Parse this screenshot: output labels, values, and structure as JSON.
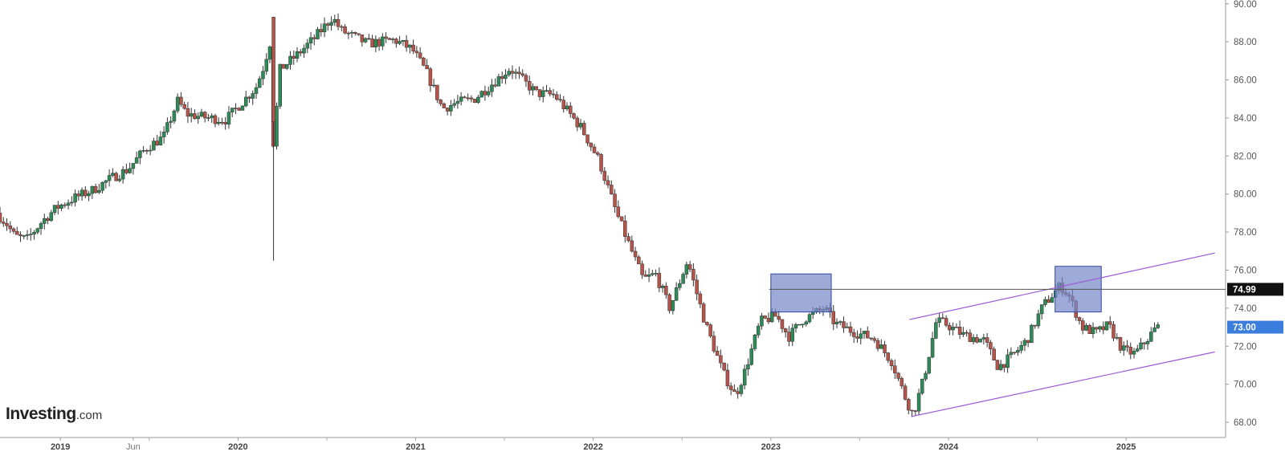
{
  "brand": {
    "name": "Investing",
    "suffix": ".com"
  },
  "colors": {
    "up": "#2e8b57",
    "down": "#b5544b",
    "box_fill": "#7889c8",
    "box_stroke": "#3346a8",
    "channel": "#9b59d6",
    "hline": "#555555",
    "last_bg": "#3b7ddd",
    "level_bg": "#111111"
  },
  "chart_data": {
    "type": "candlestick",
    "frequency": "weekly",
    "ylim": [
      67.2,
      90.2
    ],
    "y_ticks": [
      "68.00",
      "70.00",
      "72.00",
      "74.00",
      "76.00",
      "78.00",
      "80.00",
      "82.00",
      "84.00",
      "86.00",
      "88.00",
      "90.00"
    ],
    "x_ticks": [
      {
        "label": "2019",
        "t": 2019.0,
        "major": true
      },
      {
        "label": "Jun",
        "t": 2019.41,
        "major": false
      },
      {
        "label": "2020",
        "t": 2020.0,
        "major": true
      },
      {
        "label": "2021",
        "t": 2021.0,
        "major": true
      },
      {
        "label": "2022",
        "t": 2022.0,
        "major": true
      },
      {
        "label": "2023",
        "t": 2023.0,
        "major": true
      },
      {
        "label": "2024",
        "t": 2024.0,
        "major": true
      },
      {
        "label": "2025",
        "t": 2025.0,
        "major": true
      }
    ],
    "minor_ticks": [
      2019.5,
      2020.5,
      2021.5,
      2022.5,
      2023.5,
      2024.5
    ],
    "xlim": [
      2018.66,
      2025.56
    ],
    "price_path": [
      [
        2018.66,
        79.0
      ],
      [
        2018.72,
        78.4
      ],
      [
        2018.76,
        77.8
      ],
      [
        2018.83,
        77.6
      ],
      [
        2018.92,
        78.6
      ],
      [
        2019.0,
        79.3
      ],
      [
        2019.1,
        79.8
      ],
      [
        2019.2,
        80.2
      ],
      [
        2019.3,
        80.8
      ],
      [
        2019.4,
        81.3
      ],
      [
        2019.5,
        82.4
      ],
      [
        2019.6,
        83.0
      ],
      [
        2019.68,
        84.9
      ],
      [
        2019.73,
        84.2
      ],
      [
        2019.85,
        84.0
      ],
      [
        2019.95,
        83.9
      ],
      [
        2020.05,
        84.9
      ],
      [
        2020.12,
        85.6
      ],
      [
        2020.16,
        86.6
      ],
      [
        2020.2,
        88.0
      ],
      [
        2020.22,
        82.0
      ],
      [
        2020.25,
        86.5
      ],
      [
        2020.35,
        87.3
      ],
      [
        2020.45,
        88.2
      ],
      [
        2020.55,
        89.3
      ],
      [
        2020.6,
        88.6
      ],
      [
        2020.75,
        87.9
      ],
      [
        2020.9,
        88.1
      ],
      [
        2021.0,
        87.6
      ],
      [
        2021.08,
        86.4
      ],
      [
        2021.17,
        84.5
      ],
      [
        2021.25,
        84.8
      ],
      [
        2021.35,
        85.0
      ],
      [
        2021.45,
        85.8
      ],
      [
        2021.55,
        86.6
      ],
      [
        2021.7,
        85.3
      ],
      [
        2021.8,
        85.2
      ],
      [
        2021.95,
        83.5
      ],
      [
        2022.05,
        81.8
      ],
      [
        2022.15,
        79.0
      ],
      [
        2022.3,
        75.5
      ],
      [
        2022.37,
        75.8
      ],
      [
        2022.45,
        74.0
      ],
      [
        2022.55,
        76.5
      ],
      [
        2022.65,
        73.2
      ],
      [
        2022.75,
        70.6
      ],
      [
        2022.82,
        69.4
      ],
      [
        2022.87,
        70.6
      ],
      [
        2022.96,
        73.3
      ],
      [
        2023.05,
        73.6
      ],
      [
        2023.12,
        72.5
      ],
      [
        2023.2,
        73.4
      ],
      [
        2023.32,
        74.0
      ],
      [
        2023.38,
        73.2
      ],
      [
        2023.5,
        72.7
      ],
      [
        2023.6,
        72.4
      ],
      [
        2023.7,
        71.2
      ],
      [
        2023.78,
        69.2
      ],
      [
        2023.82,
        68.4
      ],
      [
        2023.88,
        70.3
      ],
      [
        2023.95,
        73.3
      ],
      [
        2024.0,
        73.2
      ],
      [
        2024.1,
        72.6
      ],
      [
        2024.22,
        72.3
      ],
      [
        2024.3,
        70.9
      ],
      [
        2024.38,
        71.5
      ],
      [
        2024.46,
        72.3
      ],
      [
        2024.55,
        74.1
      ],
      [
        2024.65,
        75.2
      ],
      [
        2024.7,
        74.6
      ],
      [
        2024.77,
        73.0
      ],
      [
        2024.85,
        72.7
      ],
      [
        2024.92,
        73.1
      ],
      [
        2025.0,
        71.8
      ],
      [
        2025.07,
        71.6
      ],
      [
        2025.14,
        72.4
      ],
      [
        2025.19,
        73.0
      ]
    ],
    "annotations": {
      "horizontal_line": {
        "value": 74.99,
        "from_t": 2022.99,
        "label": "74.99"
      },
      "last_price": {
        "value": 73.0,
        "label": "73.00"
      },
      "boxes": [
        {
          "t0": 2023.0,
          "t1": 2023.34,
          "y0": 73.8,
          "y1": 75.8
        },
        {
          "t0": 2024.6,
          "t1": 2024.86,
          "y0": 73.8,
          "y1": 76.2
        }
      ],
      "channel": [
        {
          "t0": 2023.79,
          "y0": 68.3,
          "t1": 2025.5,
          "y1": 71.7
        },
        {
          "t0": 2023.78,
          "y0": 73.4,
          "t1": 2025.5,
          "y1": 76.9
        }
      ]
    }
  }
}
